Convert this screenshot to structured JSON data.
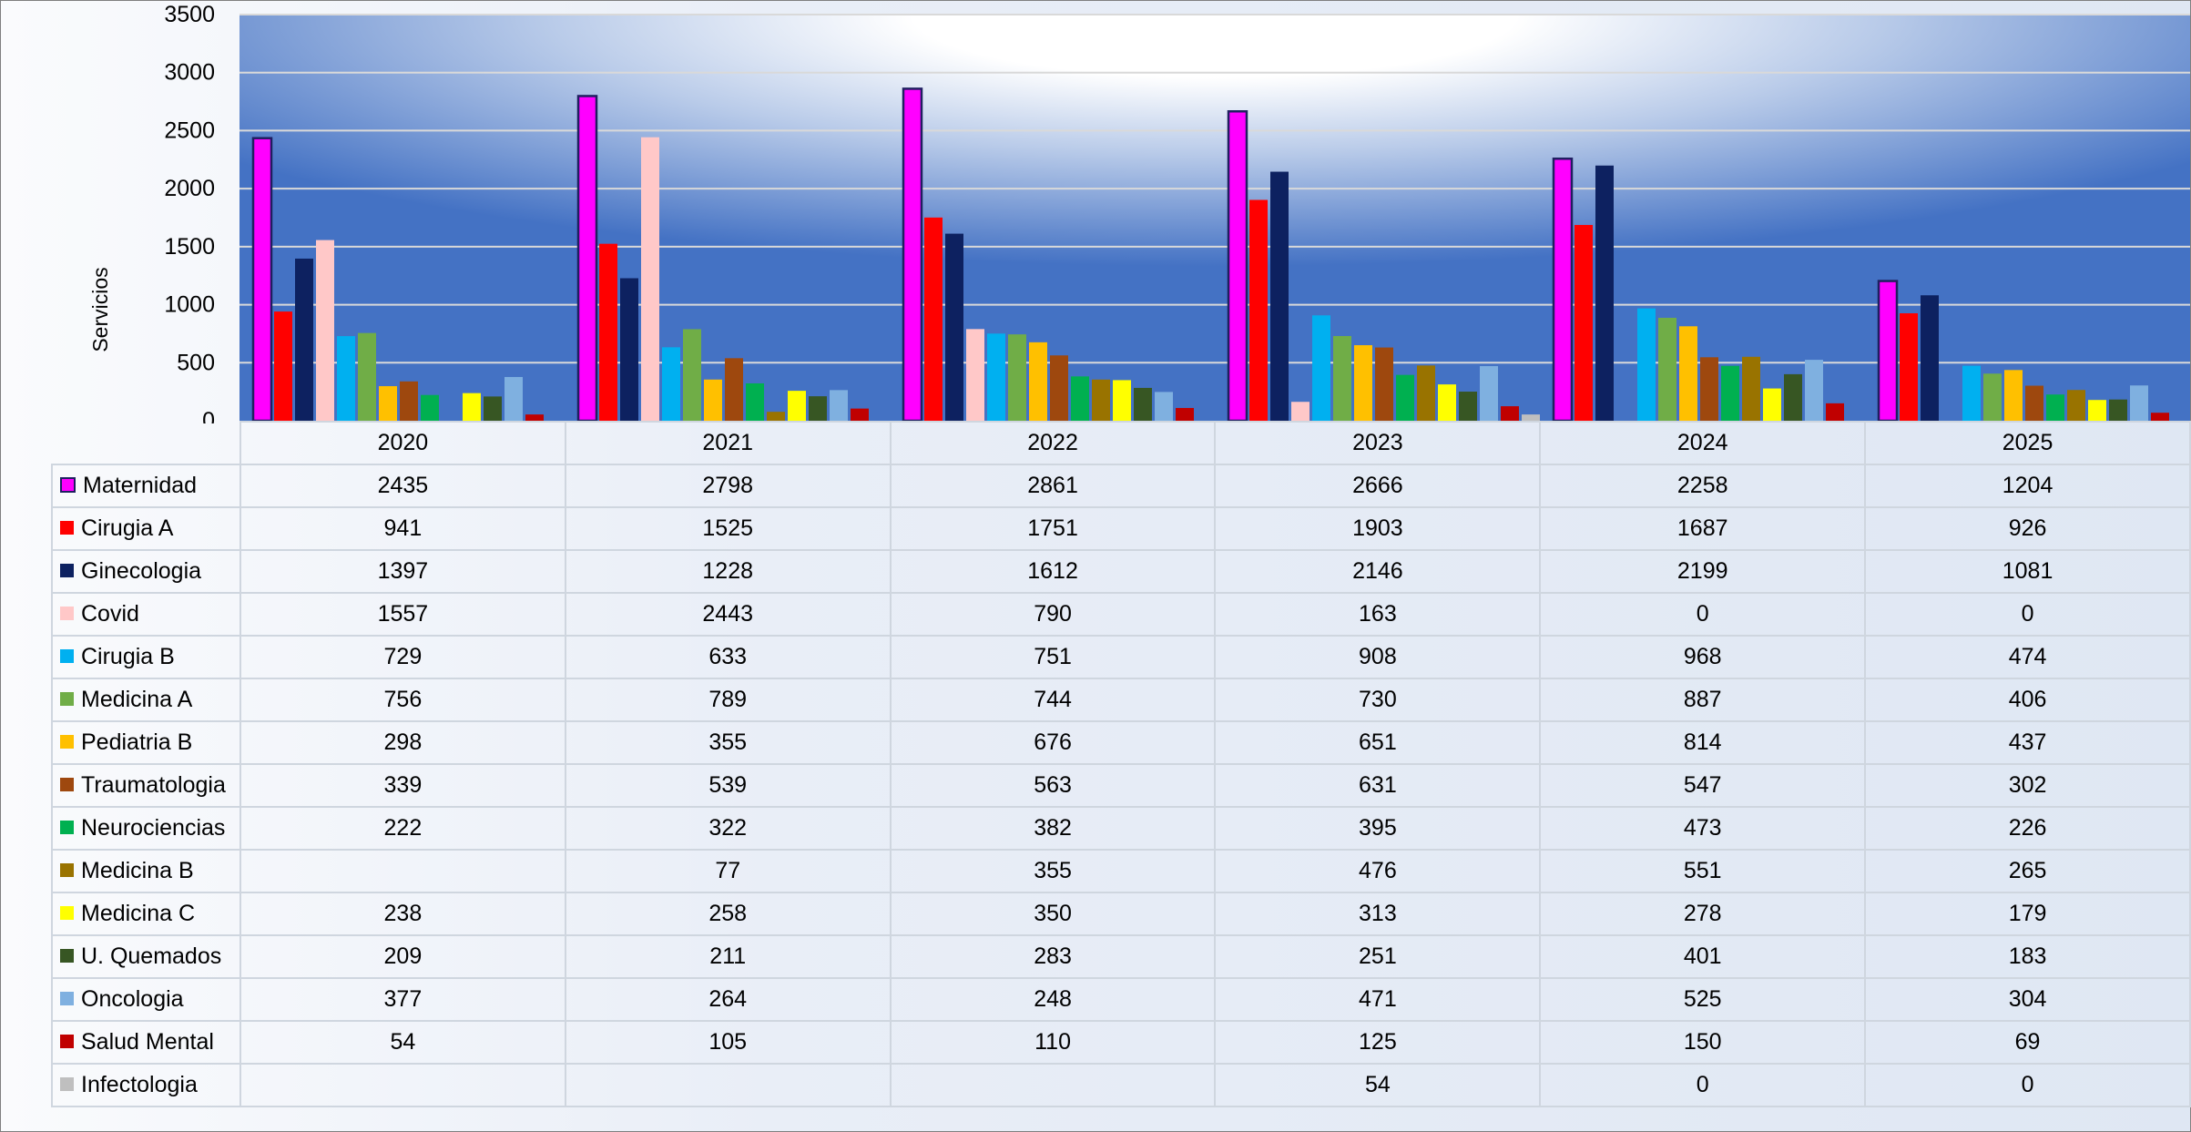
{
  "chart_data": {
    "type": "bar",
    "ylabel": "Servicios",
    "ylim": [
      0,
      3500
    ],
    "yticks": [
      0,
      500,
      1000,
      1500,
      2000,
      2500,
      3000,
      3500
    ],
    "grid": true,
    "data_table": true,
    "categories": [
      "2020",
      "2021",
      "2022",
      "2023",
      "2024",
      "2025"
    ],
    "series": [
      {
        "name": "Maternidad",
        "color": "#ff00ff",
        "outline": "#1f1f60",
        "values": [
          2435,
          2798,
          2861,
          2666,
          2258,
          1204
        ]
      },
      {
        "name": "Cirugia A",
        "color": "#ff0000",
        "values": [
          941,
          1525,
          1751,
          1903,
          1687,
          926
        ]
      },
      {
        "name": "Ginecologia",
        "color": "#0d2160",
        "values": [
          1397,
          1228,
          1612,
          2146,
          2199,
          1081
        ]
      },
      {
        "name": "Covid",
        "color": "#ffc8c8",
        "values": [
          1557,
          2443,
          790,
          163,
          0,
          0
        ]
      },
      {
        "name": "Cirugia B",
        "color": "#00b0f0",
        "values": [
          729,
          633,
          751,
          908,
          968,
          474
        ]
      },
      {
        "name": "Medicina A",
        "color": "#70ad47",
        "values": [
          756,
          789,
          744,
          730,
          887,
          406
        ]
      },
      {
        "name": "Pediatria B",
        "color": "#ffc000",
        "values": [
          298,
          355,
          676,
          651,
          814,
          437
        ]
      },
      {
        "name": "Traumatologia",
        "color": "#9e480e",
        "values": [
          339,
          539,
          563,
          631,
          547,
          302
        ]
      },
      {
        "name": "Neurociencias",
        "color": "#00b050",
        "values": [
          222,
          322,
          382,
          395,
          473,
          226
        ]
      },
      {
        "name": "Medicina B",
        "color": "#997300",
        "values": [
          null,
          77,
          355,
          476,
          551,
          265
        ]
      },
      {
        "name": "Medicina C",
        "color": "#ffff00",
        "values": [
          238,
          258,
          350,
          313,
          278,
          179
        ]
      },
      {
        "name": "U. Quemados",
        "color": "#375623",
        "values": [
          209,
          211,
          283,
          251,
          401,
          183
        ]
      },
      {
        "name": "Oncologia",
        "color": "#7fb0e0",
        "values": [
          377,
          264,
          248,
          471,
          525,
          304
        ]
      },
      {
        "name": "Salud Mental",
        "color": "#c00000",
        "values": [
          54,
          105,
          110,
          125,
          150,
          69
        ]
      },
      {
        "name": "Infectologia",
        "color": "#bfbfbf",
        "values": [
          null,
          null,
          null,
          54,
          0,
          0
        ]
      }
    ]
  }
}
